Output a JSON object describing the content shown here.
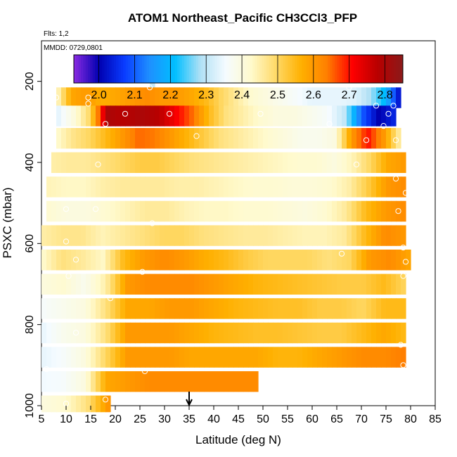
{
  "chart_data": {
    "type": "heatmap",
    "title": "ATOM1 Northeast_Pacific CH3CCl3_PFP",
    "subtitle": "Flts: 1,2",
    "date_label": "MMDD: 0729,0801",
    "xlabel": "Latitude (deg N)",
    "ylabel": "PSXC (mbar)",
    "xlim": [
      5,
      85
    ],
    "ylim": [
      1000,
      100
    ],
    "x_ticks": [
      "5",
      "10",
      "15",
      "20",
      "25",
      "30",
      "35",
      "40",
      "45",
      "50",
      "55",
      "60",
      "65",
      "70",
      "75",
      "80",
      "85"
    ],
    "y_ticks": [
      "200",
      "400",
      "600",
      "800",
      "1000"
    ],
    "colorbar": {
      "range": [
        1.93,
        2.85
      ],
      "tick_labels": [
        "2.0",
        "2.1",
        "2.2",
        "2.3",
        "2.4",
        "2.5",
        "2.6",
        "2.7",
        "2.8"
      ],
      "colors": [
        "#8a2be2",
        "#0000b0",
        "#0a3cff",
        "#1e90ff",
        "#00bfff",
        "#b0e0f5",
        "#f5fbff",
        "#fffacd",
        "#ffd966",
        "#ffb000",
        "#ff7f00",
        "#ff0000",
        "#b80000",
        "#8b1a1a"
      ]
    },
    "marker_latitude": 35,
    "levels": [
      {
        "p": 200,
        "dp": 40,
        "lat0": 27,
        "lat1": 28,
        "v": [
          2.3
        ]
      },
      {
        "p": 240,
        "dp": 50,
        "lat0": 8,
        "lat1": 78,
        "v": [
          2.42,
          2.58,
          2.6,
          2.57,
          2.58,
          2.6,
          2.62,
          2.6,
          2.6,
          2.58,
          2.55,
          2.5,
          2.46,
          2.42,
          2.4,
          2.38,
          2.36,
          2.34,
          2.34,
          2.34,
          2.33,
          2.28,
          2.2,
          2.0
        ]
      },
      {
        "p": 285,
        "dp": 50,
        "lat0": 8,
        "lat1": 77,
        "v": [
          2.33,
          2.4,
          2.5,
          2.8,
          2.78,
          2.8,
          2.78,
          2.72,
          2.65,
          2.55,
          2.48,
          2.45,
          2.42,
          2.4,
          2.4,
          2.38,
          2.36,
          2.3,
          2.1,
          2.0,
          2.05
        ]
      },
      {
        "p": 340,
        "dp": 50,
        "lat0": 8,
        "lat1": 78,
        "v": [
          2.42,
          2.47,
          2.5,
          2.55,
          2.6,
          2.65,
          2.64,
          2.6,
          2.56,
          2.52,
          2.48,
          2.46,
          2.44,
          2.42,
          2.4,
          2.38,
          2.38,
          2.4,
          2.6,
          2.7,
          2.6,
          2.44
        ]
      },
      {
        "p": 400,
        "dp": 50,
        "lat0": 7,
        "lat1": 79,
        "v": [
          2.45,
          2.46,
          2.46,
          2.48,
          2.5,
          2.52,
          2.52,
          2.5,
          2.48,
          2.47,
          2.46,
          2.45,
          2.44,
          2.43,
          2.42,
          2.42,
          2.4,
          2.44,
          2.5,
          2.58,
          2.6
        ]
      },
      {
        "p": 460,
        "dp": 50,
        "lat0": 6,
        "lat1": 79,
        "v": [
          2.44,
          2.43,
          2.43,
          2.45,
          2.46,
          2.46,
          2.46,
          2.45,
          2.45,
          2.44,
          2.43,
          2.42,
          2.42,
          2.41,
          2.41,
          2.42,
          2.45,
          2.52,
          2.6,
          2.62
        ]
      },
      {
        "p": 520,
        "dp": 50,
        "lat0": 6,
        "lat1": 79,
        "v": [
          2.42,
          2.4,
          2.4,
          2.42,
          2.44,
          2.46,
          2.46,
          2.44,
          2.43,
          2.43,
          2.42,
          2.42,
          2.41,
          2.4,
          2.42,
          2.46,
          2.55,
          2.6,
          2.62
        ]
      },
      {
        "p": 580,
        "dp": 50,
        "lat0": 5,
        "lat1": 79,
        "v": [
          2.45,
          2.47,
          2.47,
          2.44,
          2.46,
          2.48,
          2.5,
          2.5,
          2.48,
          2.47,
          2.46,
          2.46,
          2.45,
          2.44,
          2.44,
          2.46,
          2.55,
          2.62,
          2.6
        ]
      },
      {
        "p": 640,
        "dp": 50,
        "lat0": 5,
        "lat1": 80,
        "v": [
          2.42,
          2.48,
          2.46,
          2.43,
          2.55,
          2.6,
          2.62,
          2.6,
          2.57,
          2.55,
          2.52,
          2.5,
          2.5,
          2.5,
          2.48,
          2.5,
          2.6,
          2.62,
          2.58
        ]
      },
      {
        "p": 700,
        "dp": 50,
        "lat0": 5,
        "lat1": 79,
        "v": [
          2.4,
          2.42,
          2.38,
          2.45,
          2.6,
          2.62,
          2.62,
          2.62,
          2.6,
          2.58,
          2.56,
          2.55,
          2.54,
          2.53,
          2.52,
          2.52,
          2.55,
          2.5
        ]
      },
      {
        "p": 760,
        "dp": 50,
        "lat0": 5,
        "lat1": 79,
        "v": [
          2.36,
          2.38,
          2.4,
          2.48,
          2.58,
          2.58,
          2.6,
          2.6,
          2.58,
          2.56,
          2.55,
          2.54,
          2.54,
          2.52,
          2.52,
          2.5,
          2.55,
          2.55
        ]
      },
      {
        "p": 820,
        "dp": 50,
        "lat0": 5,
        "lat1": 79,
        "v": [
          2.34,
          2.38,
          2.4,
          2.48,
          2.6,
          2.6,
          2.6,
          2.58,
          2.56,
          2.55,
          2.54,
          2.54,
          2.53,
          2.52,
          2.52,
          2.55,
          2.58,
          2.55
        ]
      },
      {
        "p": 880,
        "dp": 50,
        "lat0": 5,
        "lat1": 79,
        "v": [
          2.34,
          2.36,
          2.4,
          2.5,
          2.6,
          2.6,
          2.6,
          2.58,
          2.58,
          2.58,
          2.58,
          2.56,
          2.56,
          2.58,
          2.6,
          2.62,
          2.62,
          2.64
        ]
      },
      {
        "p": 940,
        "dp": 50,
        "lat0": 5,
        "lat1": 49,
        "v": [
          2.35,
          2.36,
          2.4,
          2.58,
          2.6,
          2.62,
          2.62,
          2.62,
          2.62,
          2.62,
          2.62
        ]
      },
      {
        "p": 995,
        "dp": 40,
        "lat0": 5,
        "lat1": 19,
        "v": [
          2.4,
          2.42,
          2.48,
          2.62
        ]
      }
    ],
    "samples": [
      {
        "lat": 8,
        "p": 240
      },
      {
        "lat": 14.5,
        "p": 240
      },
      {
        "lat": 14.5,
        "p": 255
      },
      {
        "lat": 27,
        "p": 215
      },
      {
        "lat": 67.5,
        "p": 215
      },
      {
        "lat": 73,
        "p": 260
      },
      {
        "lat": 76.5,
        "p": 260
      },
      {
        "lat": 22,
        "p": 280
      },
      {
        "lat": 31,
        "p": 280
      },
      {
        "lat": 18,
        "p": 305
      },
      {
        "lat": 49.5,
        "p": 280
      },
      {
        "lat": 63.5,
        "p": 305
      },
      {
        "lat": 74.5,
        "p": 310
      },
      {
        "lat": 75.5,
        "p": 280
      },
      {
        "lat": 36.5,
        "p": 335
      },
      {
        "lat": 71,
        "p": 345
      },
      {
        "lat": 77,
        "p": 345
      },
      {
        "lat": 16.5,
        "p": 405
      },
      {
        "lat": 69,
        "p": 405
      },
      {
        "lat": 77,
        "p": 440
      },
      {
        "lat": 79,
        "p": 475
      },
      {
        "lat": 10,
        "p": 515
      },
      {
        "lat": 16,
        "p": 515
      },
      {
        "lat": 77.5,
        "p": 520
      },
      {
        "lat": 27.5,
        "p": 550
      },
      {
        "lat": 10,
        "p": 595
      },
      {
        "lat": 12,
        "p": 640
      },
      {
        "lat": 66,
        "p": 625
      },
      {
        "lat": 78.5,
        "p": 610
      },
      {
        "lat": 79,
        "p": 645
      },
      {
        "lat": 10.5,
        "p": 680
      },
      {
        "lat": 25.5,
        "p": 670
      },
      {
        "lat": 78.5,
        "p": 680
      },
      {
        "lat": 19,
        "p": 735
      },
      {
        "lat": 12,
        "p": 820
      },
      {
        "lat": 78,
        "p": 850
      },
      {
        "lat": 78.5,
        "p": 900
      },
      {
        "lat": 6,
        "p": 910
      },
      {
        "lat": 26,
        "p": 915
      },
      {
        "lat": 18,
        "p": 985
      },
      {
        "lat": 10,
        "p": 995
      }
    ]
  }
}
